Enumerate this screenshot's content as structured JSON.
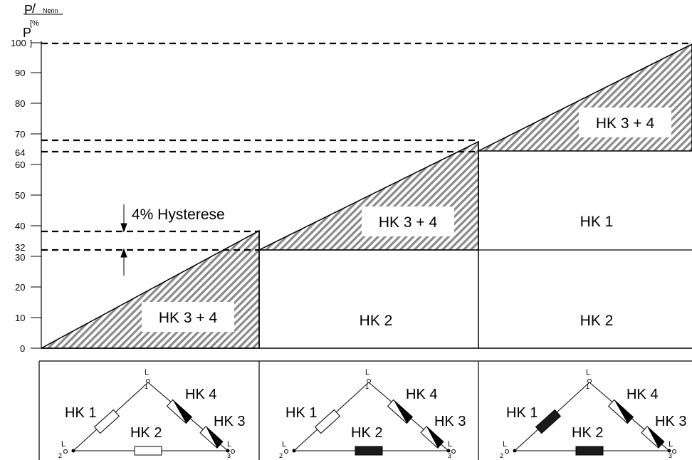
{
  "axis": {
    "y_label_p": "P",
    "y_label_slash": "/",
    "y_label_nenn": "Nenn",
    "y_label_unit": "[%",
    "y_label_p2": "P",
    "y_label_bracket": "]",
    "ticks": [
      "0",
      "10",
      "20",
      "30",
      "32",
      "40",
      "50",
      "60",
      "64",
      "70",
      "80",
      "90",
      "100"
    ]
  },
  "regions": {
    "hk34_a": "HK 3 + 4",
    "hk34_b": "HK 3 + 4",
    "hk34_c": "HK 3 + 4",
    "hk2_b": "HK 2",
    "hk2_c": "HK 2",
    "hk1_c": "HK 1"
  },
  "hysteresis_label": "4% Hysterese",
  "circuits": [
    {
      "hk1": "HK 1",
      "hk2": "HK 2",
      "hk3": "HK 3",
      "hk4": "HK 4",
      "l_top": "L",
      "n_top": "1",
      "l_left": "L",
      "n_left": "2",
      "l_right": "L",
      "n_right": "3"
    },
    {
      "hk1": "HK 1",
      "hk2": "HK 2",
      "hk3": "HK 3",
      "hk4": "HK 4",
      "l_top": "L",
      "n_top": "1",
      "l_left": "L",
      "n_left": "2",
      "l_right": "L",
      "n_right": "3"
    },
    {
      "hk1": "HK 1",
      "hk2": "HK 2",
      "hk3": "HK 3",
      "hk4": "HK 4",
      "l_top": "L",
      "n_top": "1",
      "l_left": "L",
      "n_left": "2",
      "l_right": "L",
      "n_right": "3"
    }
  ]
}
